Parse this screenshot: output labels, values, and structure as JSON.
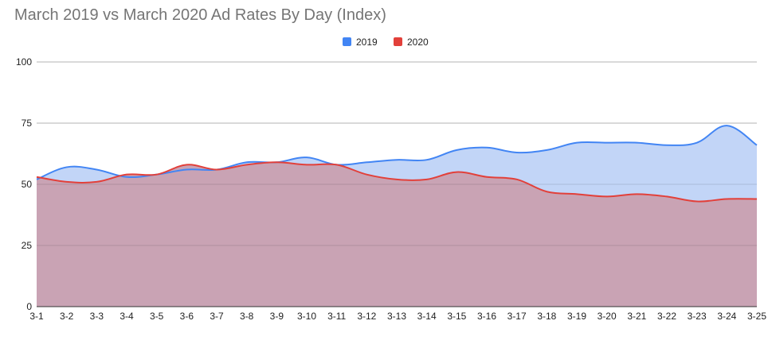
{
  "chart_data": {
    "type": "area",
    "title": "March 2019 vs March 2020 Ad Rates By Day (Index)",
    "xlabel": "",
    "ylabel": "",
    "categories": [
      "3-1",
      "3-2",
      "3-3",
      "3-4",
      "3-5",
      "3-6",
      "3-7",
      "3-8",
      "3-9",
      "3-10",
      "3-11",
      "3-12",
      "3-13",
      "3-14",
      "3-15",
      "3-16",
      "3-17",
      "3-18",
      "3-19",
      "3-20",
      "3-21",
      "3-22",
      "3-23",
      "3-24",
      "3-25"
    ],
    "ylim": [
      0,
      100
    ],
    "yticks": [
      0,
      25,
      50,
      75,
      100
    ],
    "grid": true,
    "legend_position": "top-center",
    "series": [
      {
        "name": "2019",
        "color": "#4285f4",
        "fill": "#c2d5f7",
        "values": [
          52,
          57,
          56,
          53,
          54,
          56,
          56,
          59,
          59,
          61,
          58,
          59,
          60,
          60,
          64,
          65,
          63,
          64,
          67,
          67,
          67,
          66,
          67,
          74,
          66
        ]
      },
      {
        "name": "2020",
        "color": "#e2403a",
        "fill": "#c9a3b4",
        "values": [
          53,
          51,
          51,
          54,
          54,
          58,
          56,
          58,
          59,
          58,
          58,
          54,
          52,
          52,
          55,
          53,
          52,
          47,
          46,
          45,
          46,
          45,
          43,
          44,
          44
        ]
      }
    ]
  }
}
